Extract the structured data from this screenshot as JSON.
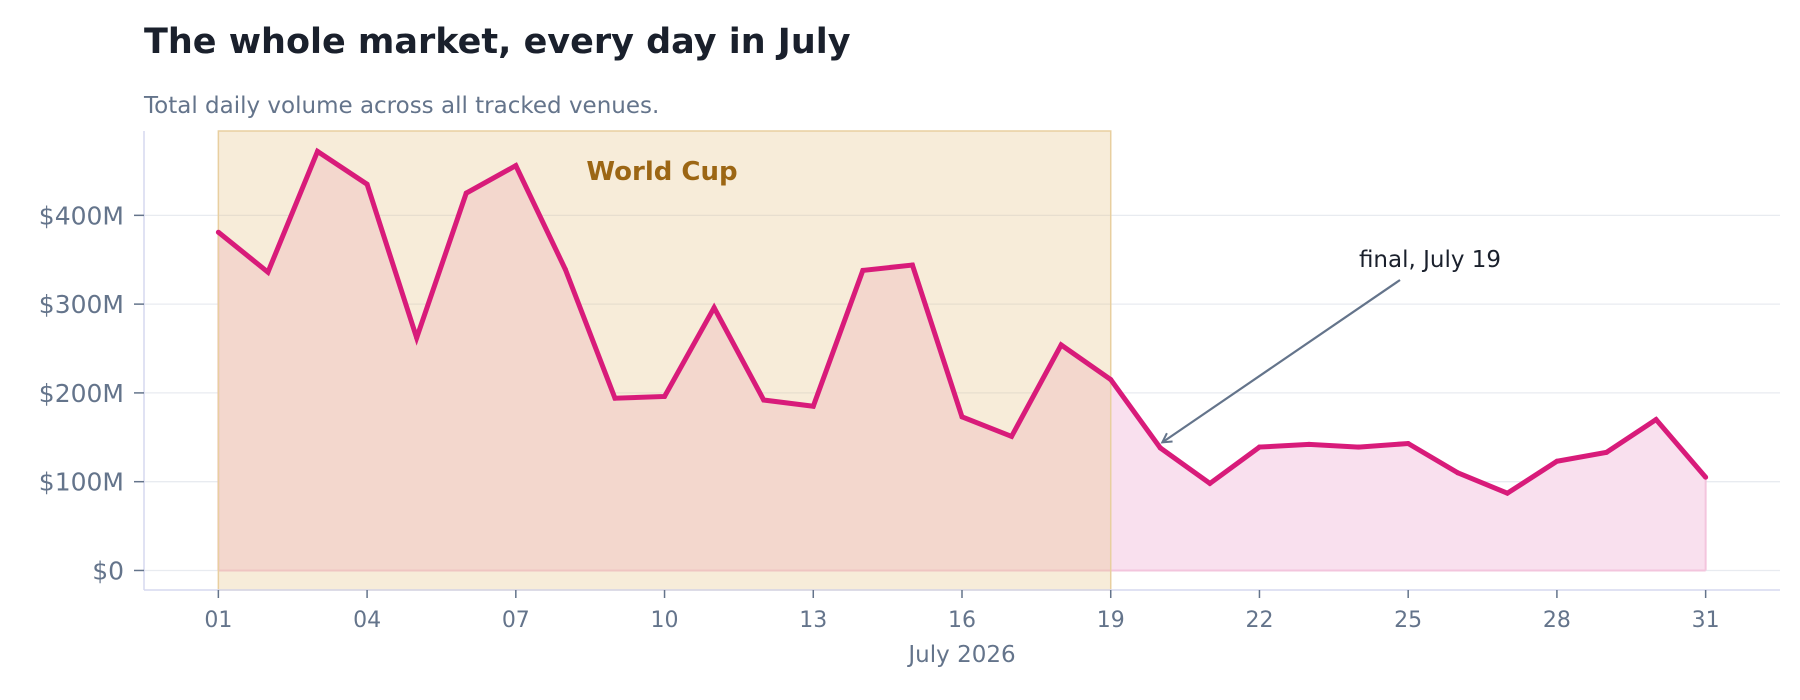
{
  "chart_data": {
    "type": "area",
    "title": "The whole market, every day in July",
    "subtitle": "Total daily volume across all tracked venues.",
    "xlabel": "July 2026",
    "ylabel": "",
    "x": [
      1,
      2,
      3,
      4,
      5,
      6,
      7,
      8,
      9,
      10,
      11,
      12,
      13,
      14,
      15,
      16,
      17,
      18,
      19,
      20,
      21,
      22,
      23,
      24,
      25,
      26,
      27,
      28,
      29,
      30,
      31
    ],
    "values": [
      381,
      336,
      472,
      435,
      262,
      425,
      456,
      339,
      194,
      196,
      296,
      192,
      185,
      338,
      344,
      173,
      151,
      254,
      215,
      138,
      98,
      139,
      142,
      139,
      143,
      110,
      87,
      123,
      133,
      170,
      105
    ],
    "ylim": [
      -22,
      495
    ],
    "xlim": [
      -0.5,
      32.5
    ],
    "xticks": [
      1,
      4,
      7,
      10,
      13,
      16,
      19,
      22,
      25,
      28,
      31
    ],
    "xtick_labels": [
      "01",
      "04",
      "07",
      "10",
      "13",
      "16",
      "19",
      "22",
      "25",
      "28",
      "31"
    ],
    "yticks": [
      0,
      100,
      200,
      300,
      400
    ],
    "ytick_labels": [
      "$0",
      "$100M",
      "$200M",
      "$300M",
      "$400M"
    ],
    "grid": true,
    "shaded_region": {
      "label": "World Cup",
      "x_start": 1,
      "x_end": 19
    },
    "annotation": {
      "text": "final, July 19",
      "x": 20,
      "y": 142
    },
    "colors": {
      "line": "#d81b7a",
      "fill": "#f9e0ee",
      "region": "#f6ecdd",
      "region_label": "#9c6614",
      "text_dark": "#1a202c",
      "text_muted": "#64748b",
      "grid": "#e8ebf0",
      "axis": "#d6d8ef",
      "annotation_arrow": "#64748b"
    }
  }
}
